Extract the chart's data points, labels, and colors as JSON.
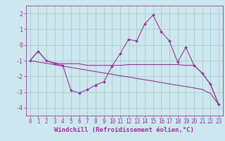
{
  "xlabel": "Windchill (Refroidissement éolien,°C)",
  "background_color": "#cce8ee",
  "grid_color": "#aacccc",
  "line_color": "#993399",
  "hours": [
    0,
    1,
    2,
    3,
    4,
    5,
    6,
    7,
    8,
    9,
    10,
    11,
    12,
    13,
    14,
    15,
    16,
    17,
    18,
    19,
    20,
    21,
    22,
    23
  ],
  "windchill": [
    -1.0,
    -0.4,
    -1.0,
    -1.2,
    -1.3,
    -2.9,
    -3.05,
    -2.85,
    -2.55,
    -2.35,
    -1.35,
    -0.55,
    0.35,
    0.25,
    1.35,
    1.9,
    0.85,
    0.25,
    -1.1,
    -0.15,
    -1.3,
    -1.8,
    -2.5,
    -3.8
  ],
  "temp": [
    -1.0,
    -0.4,
    -1.0,
    -1.15,
    -1.2,
    -1.2,
    -1.2,
    -1.3,
    -1.3,
    -1.3,
    -1.3,
    -1.3,
    -1.25,
    -1.25,
    -1.25,
    -1.25,
    -1.25,
    -1.25,
    -1.25,
    -1.3,
    -1.3,
    -1.8,
    -2.5,
    -3.8
  ],
  "linear": [
    -1.0,
    -1.09,
    -1.17,
    -1.26,
    -1.35,
    -1.43,
    -1.52,
    -1.61,
    -1.7,
    -1.78,
    -1.87,
    -1.96,
    -2.04,
    -2.13,
    -2.22,
    -2.3,
    -2.39,
    -2.48,
    -2.57,
    -2.65,
    -2.74,
    -2.83,
    -3.09,
    -3.8
  ],
  "ylim": [
    -4.5,
    2.5
  ],
  "yticks": [
    -4,
    -3,
    -2,
    -1,
    0,
    1,
    2
  ],
  "xticks": [
    0,
    1,
    2,
    3,
    4,
    5,
    6,
    7,
    8,
    9,
    10,
    11,
    12,
    13,
    14,
    15,
    16,
    17,
    18,
    19,
    20,
    21,
    22,
    23
  ],
  "xlabel_fontsize": 6.5,
  "tick_fontsize": 5.5
}
